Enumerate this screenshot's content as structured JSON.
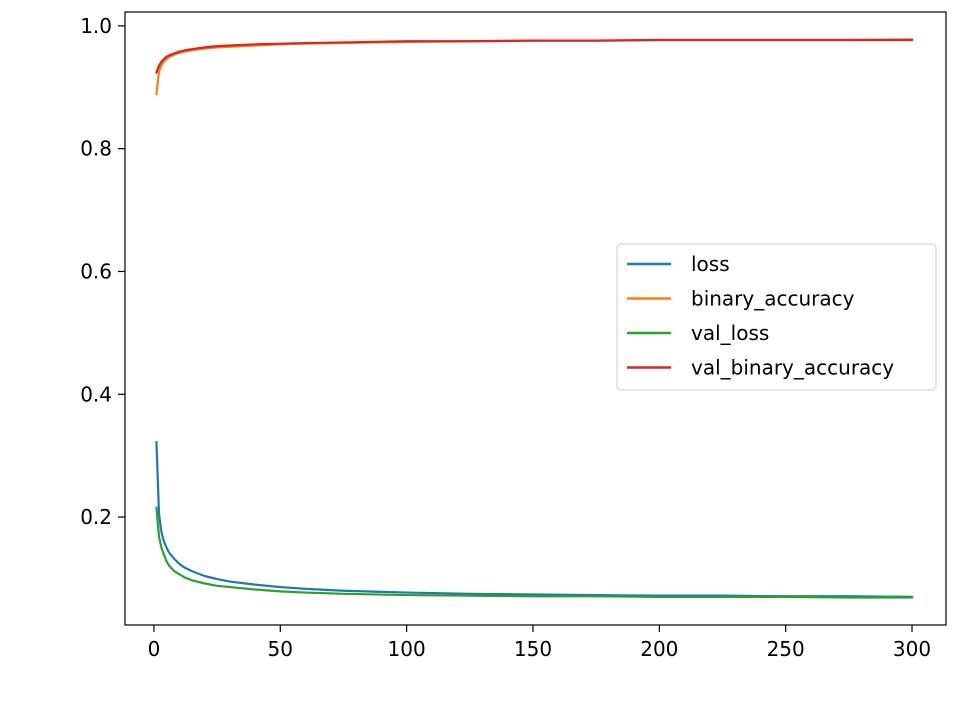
{
  "chart_data": {
    "type": "line",
    "title": "",
    "xlabel": "",
    "ylabel": "",
    "xlim": [
      -11.45,
      313.45
    ],
    "ylim": [
      0.0242,
      1.0226
    ],
    "x_ticks": [
      {
        "value": 0,
        "label": "0"
      },
      {
        "value": 50,
        "label": "50"
      },
      {
        "value": 100,
        "label": "100"
      },
      {
        "value": 150,
        "label": "150"
      },
      {
        "value": 200,
        "label": "200"
      },
      {
        "value": 250,
        "label": "250"
      },
      {
        "value": 300,
        "label": "300"
      }
    ],
    "y_ticks": [
      {
        "value": 0.2,
        "label": "0.2"
      },
      {
        "value": 0.4,
        "label": "0.4"
      },
      {
        "value": 0.6,
        "label": "0.6"
      },
      {
        "value": 0.8,
        "label": "0.8"
      },
      {
        "value": 1.0,
        "label": "1.0"
      }
    ],
    "grid": false,
    "legend_position": "center-right",
    "series": [
      {
        "name": "loss",
        "color": "#1f77b4",
        "x": [
          1,
          2,
          3,
          4,
          5,
          6,
          8,
          10,
          12,
          15,
          20,
          25,
          30,
          40,
          50,
          60,
          75,
          100,
          125,
          150,
          175,
          200,
          225,
          250,
          275,
          300
        ],
        "y": [
          0.322,
          0.205,
          0.175,
          0.16,
          0.15,
          0.142,
          0.132,
          0.124,
          0.118,
          0.112,
          0.104,
          0.099,
          0.095,
          0.09,
          0.086,
          0.083,
          0.08,
          0.077,
          0.075,
          0.074,
          0.073,
          0.072,
          0.072,
          0.071,
          0.071,
          0.07
        ]
      },
      {
        "name": "binary_accuracy",
        "color": "#ff7f0e",
        "x": [
          1,
          2,
          3,
          4,
          5,
          6,
          8,
          10,
          12,
          15,
          20,
          25,
          30,
          40,
          50,
          60,
          75,
          100,
          125,
          150,
          175,
          200,
          225,
          250,
          275,
          300
        ],
        "y": [
          0.889,
          0.925,
          0.936,
          0.942,
          0.946,
          0.949,
          0.953,
          0.956,
          0.958,
          0.96,
          0.963,
          0.965,
          0.966,
          0.968,
          0.97,
          0.971,
          0.972,
          0.974,
          0.975,
          0.976,
          0.976,
          0.977,
          0.977,
          0.977,
          0.977,
          0.978
        ]
      },
      {
        "name": "val_loss",
        "color": "#2ca02c",
        "x": [
          1,
          2,
          3,
          4,
          5,
          6,
          8,
          10,
          12,
          15,
          20,
          25,
          30,
          40,
          50,
          60,
          75,
          100,
          125,
          150,
          175,
          200,
          225,
          250,
          275,
          300
        ],
        "y": [
          0.215,
          0.168,
          0.15,
          0.138,
          0.128,
          0.121,
          0.112,
          0.107,
          0.102,
          0.097,
          0.092,
          0.088,
          0.086,
          0.082,
          0.079,
          0.077,
          0.075,
          0.073,
          0.072,
          0.071,
          0.071,
          0.07,
          0.07,
          0.07,
          0.069,
          0.069
        ]
      },
      {
        "name": "val_binary_accuracy",
        "color": "#d62728",
        "x": [
          1,
          2,
          3,
          4,
          5,
          6,
          8,
          10,
          12,
          15,
          20,
          25,
          30,
          40,
          50,
          60,
          75,
          100,
          125,
          150,
          175,
          200,
          225,
          250,
          275,
          300
        ],
        "y": [
          0.924,
          0.935,
          0.942,
          0.946,
          0.95,
          0.952,
          0.955,
          0.958,
          0.96,
          0.962,
          0.965,
          0.967,
          0.968,
          0.97,
          0.971,
          0.972,
          0.973,
          0.975,
          0.975,
          0.976,
          0.976,
          0.977,
          0.977,
          0.977,
          0.977,
          0.977
        ]
      }
    ]
  }
}
